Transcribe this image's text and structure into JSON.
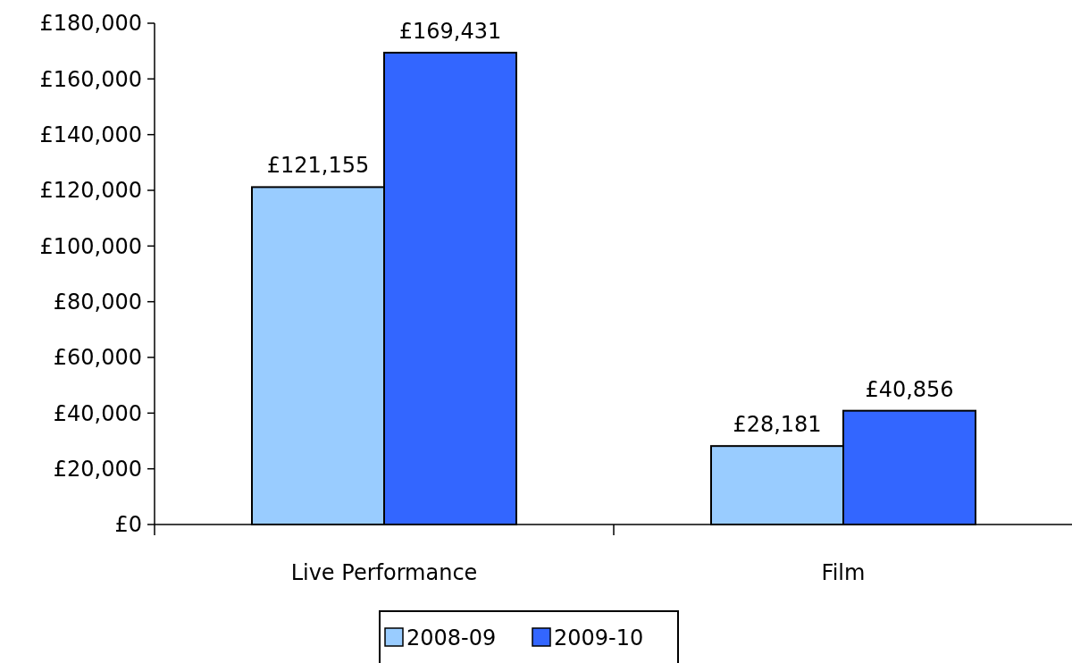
{
  "chart_data": {
    "type": "bar",
    "categories": [
      "Live Performance",
      "Film"
    ],
    "series": [
      {
        "name": "2008-09",
        "color": "#99ccff",
        "values": [
          121155,
          28181
        ],
        "value_labels": [
          "£121,155",
          "£28,181"
        ]
      },
      {
        "name": "2009-10",
        "color": "#3366ff",
        "values": [
          169431,
          40856
        ],
        "value_labels": [
          "£169,431",
          "£40,856"
        ]
      }
    ],
    "ylim": [
      0,
      180000
    ],
    "yticks": [
      {
        "value": 0,
        "label": "£0"
      },
      {
        "value": 20000,
        "label": "£20,000"
      },
      {
        "value": 40000,
        "label": "£40,000"
      },
      {
        "value": 60000,
        "label": "£60,000"
      },
      {
        "value": 80000,
        "label": "£80,000"
      },
      {
        "value": 100000,
        "label": "£100,000"
      },
      {
        "value": 120000,
        "label": "£120,000"
      },
      {
        "value": 140000,
        "label": "£140,000"
      },
      {
        "value": 160000,
        "label": "£160,000"
      },
      {
        "value": 180000,
        "label": "£180,000"
      }
    ],
    "grid": false,
    "legend": "bottom"
  }
}
